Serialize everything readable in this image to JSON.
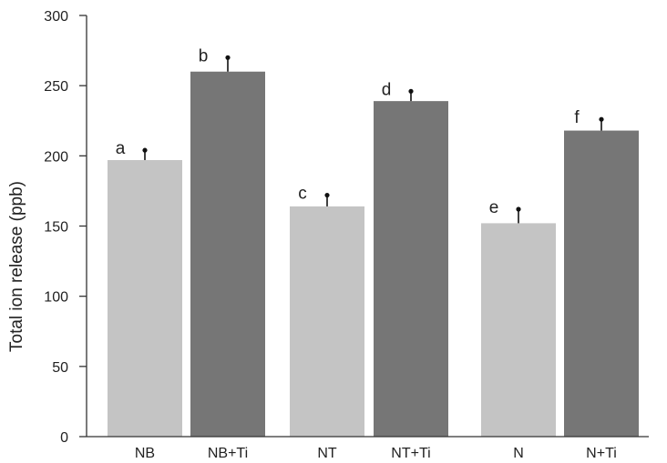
{
  "chart_data": {
    "type": "bar",
    "title": "",
    "xlabel": "",
    "ylabel": "Total ion release (ppb)",
    "ylim": [
      0,
      300
    ],
    "yticks": [
      0,
      50,
      100,
      150,
      200,
      250,
      300
    ],
    "grid": false,
    "categories": [
      "NB",
      "NB+Ti",
      "NT",
      "NT+Ti",
      "N",
      "N+Ti"
    ],
    "values": [
      197,
      260,
      164,
      239,
      152,
      218
    ],
    "errors": [
      7,
      10,
      8,
      7,
      10,
      8
    ],
    "significance_letters": [
      "a",
      "b",
      "c",
      "d",
      "e",
      "f"
    ],
    "bar_colors": [
      "#c4c4c4",
      "#767676",
      "#c4c4c4",
      "#767676",
      "#c4c4c4",
      "#767676"
    ]
  }
}
